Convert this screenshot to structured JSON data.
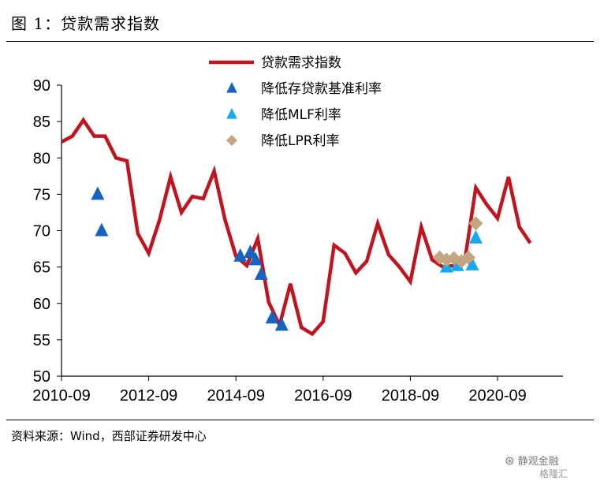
{
  "figure": {
    "title": "图 1：贷款需求指数",
    "source": "资料来源：Wind，西部证券研发中心",
    "watermark": "静观金融",
    "watermark_sub": "格隆汇"
  },
  "colors": {
    "line": "#c0141e",
    "rrr_cut": "#1565c0",
    "mlf_cut": "#19a9f0",
    "lpr_cut": "#c4a581"
  },
  "chart_data": {
    "type": "line",
    "title": "贷款需求指数",
    "xlabel": "",
    "ylabel": "",
    "ylim": [
      50,
      90
    ],
    "yticks": [
      50,
      55,
      60,
      65,
      70,
      75,
      80,
      85,
      90
    ],
    "xlim": [
      2010.75,
      2022.25
    ],
    "xticks": [
      {
        "label": "2010-09",
        "x": 2010.75
      },
      {
        "label": "2012-09",
        "x": 2012.75
      },
      {
        "label": "2014-09",
        "x": 2014.75
      },
      {
        "label": "2016-09",
        "x": 2016.75
      },
      {
        "label": "2018-09",
        "x": 2018.75
      },
      {
        "label": "2020-09",
        "x": 2020.75
      }
    ],
    "legend": [
      {
        "key": "line",
        "label": "贷款需求指数"
      },
      {
        "key": "rrr",
        "label": "降低存贷款基准利率"
      },
      {
        "key": "mlf",
        "label": "降低MLF利率"
      },
      {
        "key": "lpr",
        "label": "降低LPR利率"
      }
    ],
    "series": [
      {
        "name": "贷款需求指数",
        "type": "line",
        "x": [
          2010.75,
          2011.0,
          2011.25,
          2011.5,
          2011.75,
          2012.0,
          2012.25,
          2012.5,
          2012.75,
          2013.0,
          2013.25,
          2013.5,
          2013.75,
          2014.0,
          2014.25,
          2014.5,
          2014.75,
          2015.0,
          2015.25,
          2015.5,
          2015.75,
          2016.0,
          2016.25,
          2016.5,
          2016.75,
          2017.0,
          2017.25,
          2017.5,
          2017.75,
          2018.0,
          2018.25,
          2018.5,
          2018.75,
          2019.0,
          2019.25,
          2019.5,
          2019.75,
          2020.0,
          2020.25,
          2020.5,
          2020.75,
          2021.0,
          2021.25,
          2021.5,
          2021.75,
          2022.0,
          2022.25
        ],
        "y": [
          82.2,
          83.0,
          85.2,
          83.0,
          83.0,
          80.0,
          79.6,
          69.6,
          66.9,
          71.5,
          77.4,
          72.5,
          74.7,
          74.4,
          78.2,
          71.5,
          66.5,
          65.2,
          68.9,
          60.2,
          57.0,
          62.7,
          56.7,
          55.8,
          57.5,
          68.0,
          66.9,
          64.2,
          65.8,
          71.0,
          66.7,
          65.0,
          63.0,
          70.5,
          66.0,
          65.0,
          65.2,
          66.0,
          75.9,
          73.6,
          71.7,
          77.4,
          70.5,
          68.3,
          null,
          null,
          null
        ]
      },
      {
        "name": "降低存贷款基准利率",
        "type": "scatter",
        "marker": "triangle",
        "x": [
          2011.58,
          2011.67,
          2014.85,
          2015.08,
          2015.2,
          2015.33,
          2015.58,
          2015.8
        ],
        "y": [
          75.0,
          70.0,
          66.5,
          67.0,
          66.0,
          64.0,
          58.0,
          57.0
        ]
      },
      {
        "name": "降低MLF利率",
        "type": "scatter",
        "marker": "triangle",
        "x": [
          2019.58,
          2019.83,
          2020.17,
          2020.25
        ],
        "y": [
          65.0,
          65.2,
          65.3,
          69.0
        ]
      },
      {
        "name": "降低LPR利率",
        "type": "scatter",
        "marker": "diamond",
        "x": [
          2019.42,
          2019.58,
          2019.75,
          2019.92,
          2020.08,
          2020.25
        ],
        "y": [
          66.3,
          66.0,
          66.2,
          65.8,
          66.3,
          71.0
        ]
      }
    ]
  }
}
